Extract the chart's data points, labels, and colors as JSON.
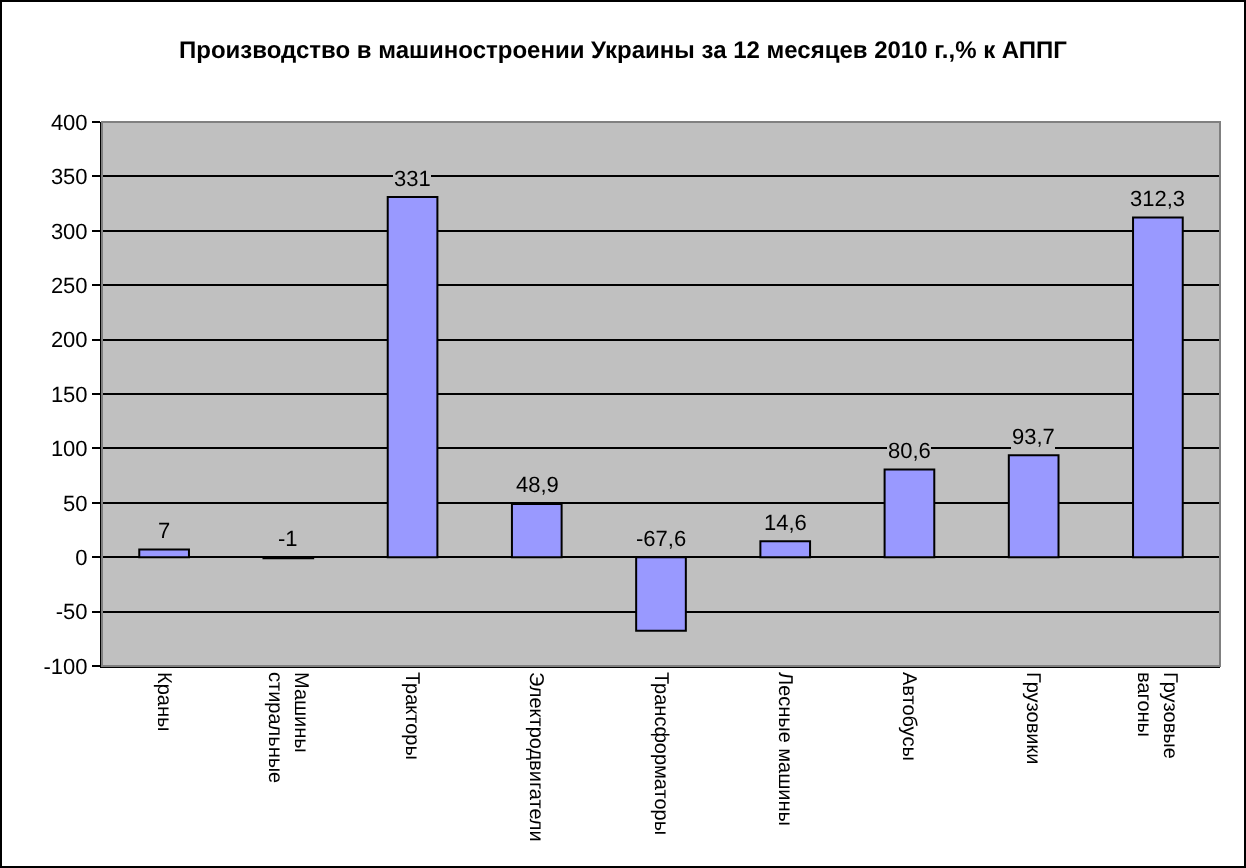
{
  "chart_data": {
    "type": "bar",
    "title": "Производство в машиностроении Украины за 12 месяцев 2010 г.,% к АППГ",
    "categories": [
      "Краны",
      "Машины стиральные",
      "Тракторы",
      "Электродвигатели",
      "Трансформаторы",
      "Лесные машины",
      "Автобусы",
      "Грузовики",
      "Грузовые вагоны"
    ],
    "values": [
      7,
      -1,
      331,
      48.9,
      -67.6,
      14.6,
      80.6,
      93.7,
      312.3
    ],
    "value_labels": [
      "7",
      "-1",
      "331",
      "48,9",
      "-67,6",
      "14,6",
      "80,6",
      "93,7",
      "312,3"
    ],
    "color": "#9999ff",
    "ylim": [
      -100,
      400
    ],
    "yticks": [
      -100,
      -50,
      0,
      50,
      100,
      150,
      200,
      250,
      300,
      350,
      400
    ],
    "grid": "y"
  }
}
